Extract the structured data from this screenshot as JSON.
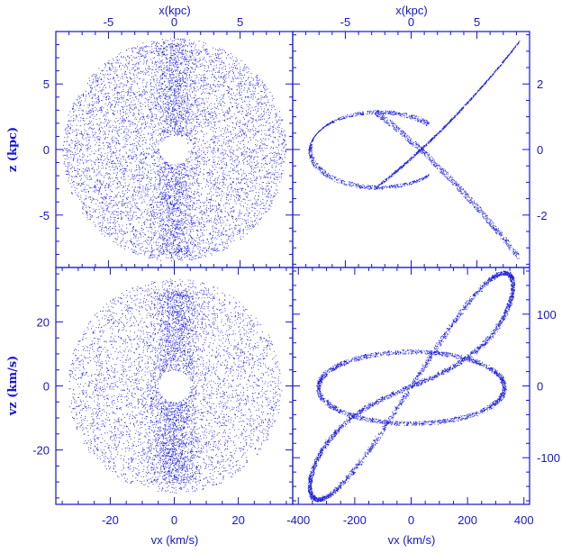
{
  "colors": {
    "ink": "#1515d6",
    "points": "#1f1fe0"
  },
  "chart_data": [
    {
      "id": "top-left",
      "type": "scatter",
      "title": "",
      "xlabel": "x(kpc)",
      "ylabel": "z  (kpc)",
      "xlim": [
        -9,
        9
      ],
      "ylim": [
        -9,
        9
      ],
      "xticks_top": [
        -5,
        0,
        5
      ],
      "yticks_left": [
        5,
        0,
        -5
      ],
      "description_values": {
        "disk_radius": 8.5,
        "hole_radius": 1.1,
        "n_points": 9000
      }
    },
    {
      "id": "top-right",
      "type": "scatter",
      "title": "",
      "xlabel": "x(kpc)",
      "ylabel": "",
      "xlim": [
        -9,
        9
      ],
      "ylim": [
        -3.6,
        3.6
      ],
      "xticks_top": [
        -5,
        0,
        5
      ],
      "yticks_right": [
        2,
        0,
        -2
      ],
      "description_values": {
        "orbit_x_amplitude": 8.2,
        "loop_center_x": -5.2,
        "tail_z": 3.2
      }
    },
    {
      "id": "bottom-left",
      "type": "scatter",
      "title": "",
      "xlabel": "vx (km/s)",
      "ylabel": "vz  (km/s)",
      "xlim": [
        -37,
        37
      ],
      "ylim": [
        -37,
        37
      ],
      "xticks_bottom": [
        -20,
        0,
        20
      ],
      "yticks_left": [
        20,
        0,
        -20
      ],
      "description_values": {
        "disk_radius": 33.5,
        "hole_radius": 5,
        "n_points": 9000
      }
    },
    {
      "id": "bottom-right",
      "type": "scatter",
      "title": "",
      "xlabel": "vx (km/s)",
      "ylabel": "",
      "xlim": [
        -420,
        420
      ],
      "ylim": [
        -165,
        165
      ],
      "xticks_bottom": [
        -400,
        -200,
        0,
        200,
        400
      ],
      "yticks_right": [
        100,
        0,
        -100
      ],
      "description_values": {
        "lissajous_x_amplitude": 360,
        "lissajous_y_amplitude": 140
      }
    }
  ]
}
